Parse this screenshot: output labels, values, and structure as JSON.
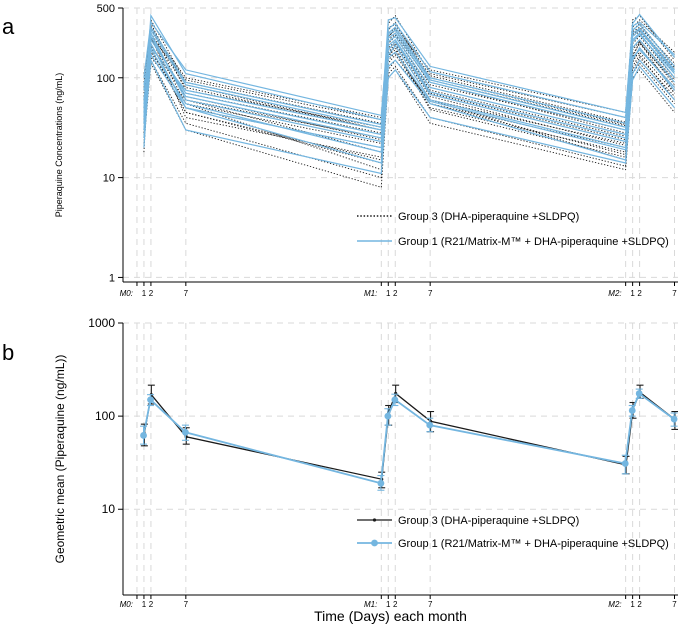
{
  "panel_labels": {
    "a": "a",
    "b": "b"
  },
  "colors": {
    "group3": "#1a1a1a",
    "group1": "#74b6e0",
    "grid": "#d9d9d9",
    "axis": "#000000"
  },
  "chart_data": [
    {
      "id": "a",
      "type": "line",
      "title": "",
      "ylabel": "Piperaquine Concentrations (ng/mL)",
      "xlabel": "",
      "yscale": "log",
      "ylim": [
        0.9,
        500
      ],
      "yticks": [
        {
          "v": 1,
          "label": "1"
        },
        {
          "v": 10,
          "label": "10"
        },
        {
          "v": 100,
          "label": "100"
        },
        {
          "v": 500,
          "label": "500"
        }
      ],
      "xticks": [
        {
          "v": 0,
          "label": "M0:",
          "italic": true
        },
        {
          "v": 1,
          "label": "1"
        },
        {
          "v": 2,
          "label": "2"
        },
        {
          "v": 7,
          "label": "7"
        },
        {
          "v": 35,
          "label": "M1:",
          "italic": true
        },
        {
          "v": 36,
          "label": "1"
        },
        {
          "v": 37,
          "label": "2"
        },
        {
          "v": 42,
          "label": "7"
        },
        {
          "v": 70,
          "label": "M2:",
          "italic": true
        },
        {
          "v": 71,
          "label": "1"
        },
        {
          "v": 72,
          "label": "2"
        },
        {
          "v": 77,
          "label": "7"
        }
      ],
      "xlim": [
        -2,
        77.5
      ],
      "sample_times": [
        1,
        2,
        7,
        35,
        36,
        37,
        42,
        70,
        71,
        72,
        77
      ],
      "legend": [
        {
          "label": "Group 3 (DHA-piperaquine +SLDPQ)",
          "style": "dotted"
        },
        {
          "label": "Group 1 (R21/Matrix-M™ + DHA-piperaquine +SLDPQ)",
          "style": "solid"
        }
      ],
      "series": [
        {
          "name": "Group 3",
          "style": "dotted",
          "individuals": [
            [
              18,
              260,
              40,
              16,
              180,
              200,
              50,
              18,
              160,
              230,
              70
            ],
            [
              30,
              320,
              60,
              25,
              260,
              300,
              85,
              30,
              280,
              300,
              110
            ],
            [
              45,
              180,
              55,
              12,
              120,
              150,
              60,
              15,
              120,
              160,
              65
            ],
            [
              60,
              380,
              90,
              35,
              350,
              420,
              110,
              40,
              380,
              420,
              150
            ],
            [
              25,
              200,
              45,
              14,
              150,
              180,
              55,
              17,
              140,
              200,
              80
            ],
            [
              80,
              240,
              70,
              28,
              220,
              260,
              75,
              26,
              260,
              290,
              120
            ],
            [
              35,
              150,
              35,
              10,
              110,
              130,
              40,
              13,
              110,
              140,
              55
            ],
            [
              55,
              280,
              80,
              30,
              300,
              360,
              95,
              33,
              300,
              350,
              130
            ],
            [
              90,
              300,
              100,
              40,
              280,
              310,
              120,
              45,
              320,
              380,
              180
            ],
            [
              40,
              220,
              50,
              20,
              160,
              210,
              60,
              22,
              170,
              220,
              90
            ],
            [
              70,
              160,
              60,
              18,
              140,
              170,
              55,
              20,
              150,
              180,
              70
            ],
            [
              28,
              350,
              75,
              32,
              240,
              270,
              90,
              28,
              220,
              260,
              100
            ],
            [
              50,
              190,
              45,
              15,
              170,
              190,
              48,
              16,
              130,
              170,
              60
            ],
            [
              110,
              260,
              95,
              38,
              320,
              340,
              105,
              36,
              290,
              320,
              140
            ],
            [
              22,
              140,
              30,
              8,
              100,
              120,
              35,
              12,
              100,
              120,
              45
            ],
            [
              65,
              210,
              65,
              24,
              200,
              230,
              70,
              24,
              200,
              240,
              95
            ],
            [
              38,
              250,
              55,
              22,
              180,
              220,
              65,
              21,
              190,
              230,
              85
            ],
            [
              75,
              330,
              85,
              30,
              260,
              300,
              100,
              34,
              270,
              310,
              125
            ]
          ]
        },
        {
          "name": "Group 1",
          "style": "solid",
          "individuals": [
            [
              20,
              220,
              50,
              20,
              170,
              210,
              60,
              20,
              150,
              200,
              75
            ],
            [
              40,
              420,
              110,
              38,
              380,
              400,
              130,
              45,
              350,
              430,
              160
            ],
            [
              55,
              170,
              50,
              14,
              130,
              150,
              55,
              15,
              110,
              150,
              60
            ],
            [
              30,
              260,
              65,
              25,
              230,
              260,
              80,
              27,
              240,
              280,
              100
            ],
            [
              75,
              300,
              85,
              32,
              280,
              320,
              100,
              35,
              300,
              340,
              130
            ],
            [
              25,
              150,
              30,
              11,
              100,
              120,
              40,
              14,
              95,
              130,
              50
            ],
            [
              60,
              240,
              70,
              27,
              210,
              240,
              72,
              25,
              230,
              270,
              110
            ],
            [
              100,
              360,
              120,
              42,
              310,
              350,
              115,
              40,
              330,
              360,
              170
            ],
            [
              45,
              190,
              55,
              18,
              160,
              180,
              58,
              19,
              160,
              190,
              80
            ],
            [
              35,
              280,
              60,
              23,
              190,
              230,
              68,
              23,
              200,
              240,
              90
            ],
            [
              85,
              200,
              75,
              30,
              250,
              280,
              90,
              30,
              260,
              300,
              115
            ],
            [
              50,
              320,
              90,
              34,
              270,
              300,
              95,
              32,
              280,
              310,
              120
            ]
          ]
        }
      ]
    },
    {
      "id": "b",
      "type": "line",
      "title": "",
      "ylabel": "Geometric mean (Piperaquine (ng/mL))",
      "xlabel": "Time (Days) each month",
      "yscale": "log",
      "ylim": [
        1.2,
        1000
      ],
      "yticks": [
        {
          "v": 10,
          "label": "10"
        },
        {
          "v": 100,
          "label": "100"
        },
        {
          "v": 1000,
          "label": "1000"
        }
      ],
      "xticks": [
        {
          "v": 0,
          "label": "M0:",
          "italic": true
        },
        {
          "v": 1,
          "label": "1"
        },
        {
          "v": 2,
          "label": "2"
        },
        {
          "v": 7,
          "label": "7"
        },
        {
          "v": 35,
          "label": "M1:",
          "italic": true
        },
        {
          "v": 36,
          "label": "1"
        },
        {
          "v": 37,
          "label": "2"
        },
        {
          "v": 42,
          "label": "7"
        },
        {
          "v": 70,
          "label": "M2:",
          "italic": true
        },
        {
          "v": 71,
          "label": "1"
        },
        {
          "v": 72,
          "label": "2"
        },
        {
          "v": 77,
          "label": "7"
        }
      ],
      "xlim": [
        -2,
        77.5
      ],
      "legend": [
        {
          "label": "Group 3 (DHA-piperaquine +SLDPQ)",
          "style": "black-small-dot"
        },
        {
          "label": "Group 1 (R21/Matrix-M™ + DHA-piperaquine +SLDPQ)",
          "style": "blue-circle"
        }
      ],
      "series": [
        {
          "name": "Group 3",
          "x": [
            1,
            2,
            7,
            35,
            36,
            37,
            42,
            70,
            71,
            72,
            77
          ],
          "values": [
            65,
            170,
            60,
            21,
            110,
            175,
            88,
            30,
            120,
            180,
            92
          ],
          "lower": [
            48,
            135,
            50,
            17,
            80,
            140,
            68,
            24,
            95,
            155,
            72
          ],
          "upper": [
            82,
            215,
            75,
            25,
            130,
            215,
            112,
            37,
            140,
            215,
            112
          ]
        },
        {
          "name": "Group 1",
          "x": [
            1,
            2,
            7,
            35,
            36,
            37,
            42,
            70,
            71,
            72,
            77
          ],
          "values": [
            62,
            150,
            67,
            19,
            100,
            150,
            80,
            31,
            115,
            175,
            93
          ],
          "lower": [
            50,
            130,
            55,
            16,
            80,
            130,
            68,
            24,
            100,
            155,
            78
          ],
          "upper": [
            78,
            170,
            80,
            23,
            120,
            172,
            95,
            38,
            130,
            195,
            108
          ]
        }
      ]
    }
  ]
}
